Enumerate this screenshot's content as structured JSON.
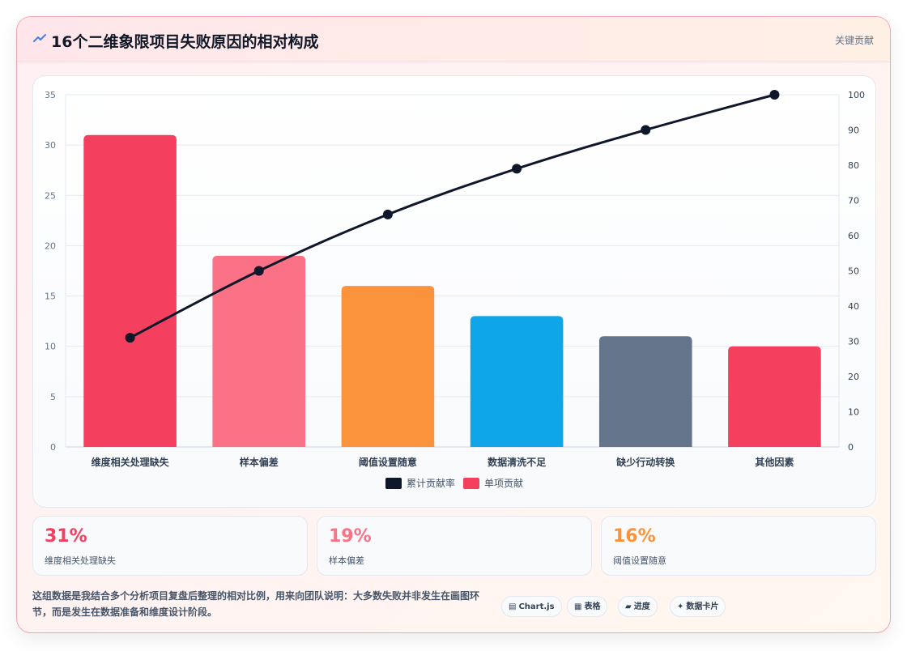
{
  "header": {
    "title": "16个二维象限项目失败原因的相对构成",
    "tag": "关键贡献",
    "icon": "trend-icon"
  },
  "colors": {
    "red": "#f43f5e",
    "pink": "#fb7185",
    "orange": "#fb923c",
    "blue": "#0ea5e9",
    "slate": "#64748b",
    "line": "#0f172a"
  },
  "chart_data": {
    "type": "bar",
    "categories": [
      "维度相关处理缺失",
      "样本偏差",
      "阈值设置随意",
      "数据清洗不足",
      "缺少行动转换",
      "其他因素"
    ],
    "series": [
      {
        "name": "单项贡献",
        "type": "bar",
        "axis": "left",
        "values": [
          31,
          19,
          16,
          13,
          11,
          10
        ],
        "colors": [
          "#f43f5e",
          "#fb7185",
          "#fb923c",
          "#0ea5e9",
          "#64748b",
          "#f43f5e"
        ]
      },
      {
        "name": "累计贡献率",
        "type": "line",
        "axis": "right",
        "values": [
          31,
          50,
          66,
          79,
          90,
          100
        ],
        "color": "#0f172a"
      }
    ],
    "ylim_left": [
      0,
      35
    ],
    "yticks_left": [
      0,
      5,
      10,
      15,
      20,
      25,
      30,
      35
    ],
    "ylim_right": [
      0,
      100
    ],
    "yticks_right": [
      0,
      10,
      20,
      30,
      40,
      50,
      60,
      70,
      80,
      90,
      100
    ],
    "grid": true,
    "legend": [
      {
        "label": "累计贡献率",
        "color": "#0f172a"
      },
      {
        "label": "单项贡献",
        "color": "#f43f5e"
      }
    ],
    "legend_position": "bottom"
  },
  "stats": [
    {
      "value": "31%",
      "label": "维度相关处理缺失",
      "color": "#f43f5e"
    },
    {
      "value": "19%",
      "label": "样本偏差",
      "color": "#fb7185"
    },
    {
      "value": "16%",
      "label": "阈值设置随意",
      "color": "#fb923c"
    }
  ],
  "note": "这组数据是我结合多个分析项目复盘后整理的相对比例，用来向团队说明：大多数失败并非发生在画图环节，而是发生在数据准备和维度设计阶段。",
  "chips": [
    {
      "glyph": "▤",
      "label": "Chart.js"
    },
    {
      "glyph": "▦",
      "label": "表格"
    },
    {
      "glyph": "▰",
      "label": "进度"
    },
    {
      "glyph": "✦",
      "label": "数据卡片"
    }
  ]
}
